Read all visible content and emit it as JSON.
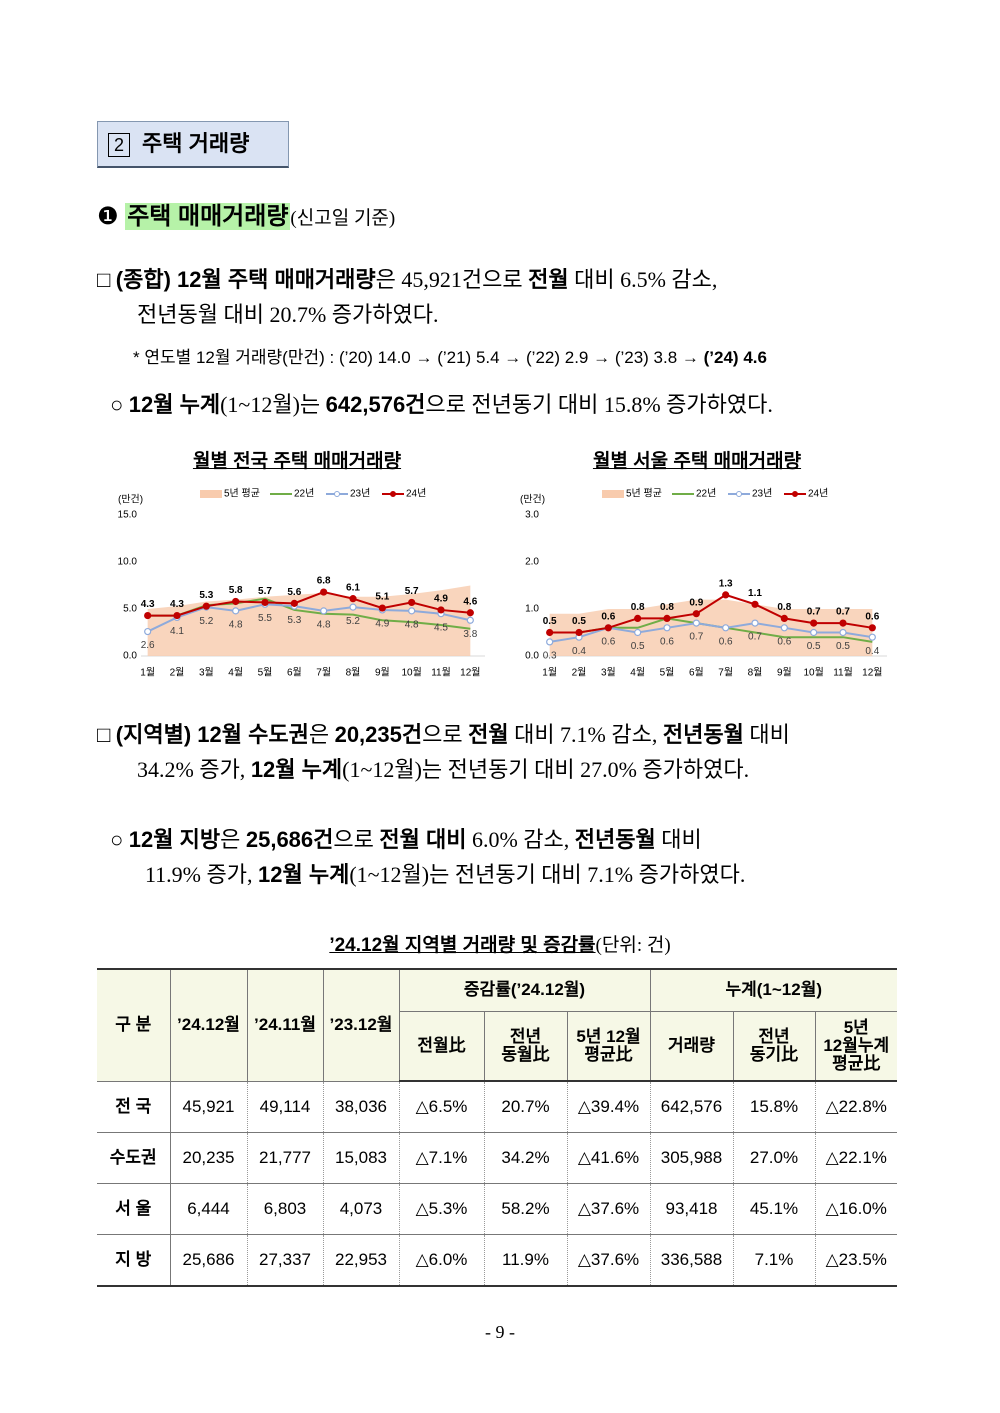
{
  "section": {
    "number": "2",
    "title": "주택 거래량"
  },
  "subsection": {
    "bullet": "❶",
    "title": "주택 매매거래량",
    "note": "(신고일 기준)"
  },
  "paragraphs": [
    {
      "lines": [
        [
          "□ ",
          "(종합) 12월 주택 매매거래량",
          "은 45,921건으로 ",
          "전월",
          " 대비 6.5% 감소,"
        ],
        [
          "전년동월 대비 20.7% 증가하였다."
        ]
      ]
    },
    {
      "lines": [
        [
          "* 연도별 12월 거래량(만건) : (’20) 14.0 → (’21) 5.4 → (’22) 2.9 → (’23) 3.8 → ",
          "(’24) 4.6"
        ]
      ]
    },
    {
      "lines": [
        [
          "○ ",
          "12월 누계",
          "(1~12월)는 ",
          "642,576건",
          "으로 전년동기 대비 15.8% 증가하였다."
        ]
      ]
    },
    {
      "lines": [
        [
          "□ ",
          "(지역별) 12월 수도권",
          "은 ",
          "20,235건",
          "으로 ",
          "전월",
          " 대비 7.1% 감소, ",
          "전년동월",
          " 대비"
        ],
        [
          "34.2% 증가, ",
          "12월 누계",
          "(1~12월)는 전년동기 대비 27.0% 증가하였다."
        ]
      ]
    },
    {
      "lines": [
        [
          "○ ",
          "12월 지방",
          "은 ",
          "25,686건",
          "으로 ",
          "전월 대비",
          " 6.0% 감소, ",
          "전년동월",
          " 대비"
        ],
        [
          "11.9% 증가, ",
          "12월 누계",
          "(1~12월)는 전년동기 대비 7.1% 증가하였다."
        ]
      ]
    }
  ],
  "chart_data": [
    {
      "type": "line",
      "title": "월별 전국 주택 매매거래량",
      "y_unit": "(만건)",
      "categories": [
        "1월",
        "2월",
        "3월",
        "4월",
        "5월",
        "6월",
        "7월",
        "8월",
        "9월",
        "10월",
        "11월",
        "12월"
      ],
      "ylim": [
        0,
        15
      ],
      "yticks": [
        {
          "value": 0,
          "label": "0.0"
        },
        {
          "value": 5,
          "label": "5.0"
        },
        {
          "value": 10,
          "label": "10.0"
        },
        {
          "value": 15,
          "label": "15.0"
        }
      ],
      "legend": "top",
      "series": [
        {
          "name": "5년 평균",
          "type": "area",
          "color": "#f8cbad",
          "values": [
            5.0,
            5.3,
            5.8,
            6.0,
            6.3,
            6.5,
            6.7,
            6.3,
            6.3,
            6.6,
            7.0,
            7.5
          ]
        },
        {
          "name": "22년",
          "type": "line",
          "color": "#70ad47",
          "values": [
            4.3,
            4.3,
            5.4,
            5.6,
            6.1,
            4.9,
            4.5,
            4.4,
            3.8,
            3.6,
            3.3,
            2.9
          ]
        },
        {
          "name": "23년",
          "type": "line",
          "color": "#8eaadb",
          "marker": "open",
          "labels": "below",
          "values": [
            2.6,
            4.1,
            5.2,
            4.8,
            5.5,
            5.3,
            4.8,
            5.2,
            4.9,
            4.8,
            4.5,
            3.8
          ]
        },
        {
          "name": "24년",
          "type": "line",
          "color": "#c00000",
          "marker": "filled",
          "labels": "above",
          "values": [
            4.3,
            4.3,
            5.3,
            5.8,
            5.7,
            5.6,
            6.8,
            6.1,
            5.1,
            5.7,
            4.9,
            4.6
          ]
        }
      ]
    },
    {
      "type": "line",
      "title": "월별 서울 주택 매매거래량",
      "y_unit": "(만건)",
      "categories": [
        "1월",
        "2월",
        "3월",
        "4월",
        "5월",
        "6월",
        "7월",
        "8월",
        "9월",
        "10월",
        "11월",
        "12월"
      ],
      "ylim": [
        0,
        3
      ],
      "yticks": [
        {
          "value": 0,
          "label": "0.0"
        },
        {
          "value": 1,
          "label": "1.0"
        },
        {
          "value": 2,
          "label": "2.0"
        },
        {
          "value": 3,
          "label": "3.0"
        }
      ],
      "legend": "top",
      "series": [
        {
          "name": "5년 평균",
          "type": "area",
          "color": "#f8cbad",
          "values": [
            0.9,
            0.9,
            1.0,
            1.0,
            1.1,
            1.2,
            1.2,
            1.1,
            1.0,
            1.0,
            1.0,
            1.0
          ]
        },
        {
          "name": "22년",
          "type": "line",
          "color": "#70ad47",
          "values": [
            0.5,
            0.5,
            0.6,
            0.6,
            0.8,
            0.7,
            0.6,
            0.5,
            0.4,
            0.4,
            0.4,
            0.3
          ]
        },
        {
          "name": "23년",
          "type": "line",
          "color": "#8eaadb",
          "marker": "open",
          "labels": "below",
          "values": [
            0.3,
            0.4,
            0.6,
            0.5,
            0.6,
            0.7,
            0.6,
            0.7,
            0.6,
            0.5,
            0.5,
            0.4
          ]
        },
        {
          "name": "24년",
          "type": "line",
          "color": "#c00000",
          "marker": "filled",
          "labels": "above",
          "values": [
            0.5,
            0.5,
            0.6,
            0.8,
            0.8,
            0.9,
            1.3,
            1.1,
            0.8,
            0.7,
            0.7,
            0.6
          ]
        }
      ]
    }
  ],
  "table": {
    "title": [
      "’24.12월 지역별 거래량 및 증감률",
      "(단위: 건)"
    ],
    "header": {
      "region": "구 분",
      "months": [
        "’24.12월",
        "’24.11월",
        "’23.12월"
      ],
      "group_change": "증감률(’24.12월)",
      "group_cumulative": "누계(1~12월)",
      "change": [
        "전월比",
        "전년\n동월比",
        "5년 12월\n평균比"
      ],
      "cumulative": [
        "거래량",
        "전년\n동기比",
        "5년\n12월누계\n평균比"
      ]
    },
    "rows": [
      [
        "전 국",
        "45,921",
        "49,114",
        "38,036",
        "△6.5%",
        "20.7%",
        "△39.4%",
        "642,576",
        "15.8%",
        "△22.8%"
      ],
      [
        "수도권",
        "20,235",
        "21,777",
        "15,083",
        "△7.1%",
        "34.2%",
        "△41.6%",
        "305,988",
        "27.0%",
        "△22.1%"
      ],
      [
        "서 울",
        "6,444",
        "6,803",
        "4,073",
        "△5.3%",
        "58.2%",
        "△37.6%",
        "93,418",
        "45.1%",
        "△16.0%"
      ],
      [
        "지 방",
        "25,686",
        "27,337",
        "22,953",
        "△6.0%",
        "11.9%",
        "△37.6%",
        "336,588",
        "7.1%",
        "△23.5%"
      ]
    ]
  },
  "page_number": "- 9 -"
}
